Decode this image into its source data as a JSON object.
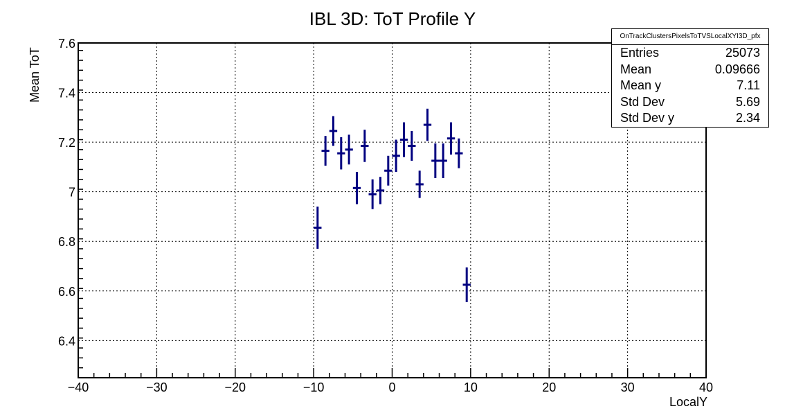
{
  "title": "IBL 3D: ToT Profile Y",
  "colors": {
    "marker": "#000080",
    "axis": "#000000",
    "grid": "#000000"
  },
  "stats": {
    "name": "OnTrackClustersPixelsToTVSLocalXYI3D_pfx",
    "rows": [
      {
        "label": "Entries",
        "value": "25073"
      },
      {
        "label": "Mean",
        "value": "0.09666"
      },
      {
        "label": "Mean y",
        "value": "7.11"
      },
      {
        "label": "Std Dev",
        "value": "5.69"
      },
      {
        "label": "Std Dev y",
        "value": "2.34"
      }
    ]
  },
  "chart_data": {
    "type": "scatter",
    "title": "IBL 3D: ToT Profile Y",
    "xlabel": "LocalY",
    "ylabel": "Mean ToT",
    "xlim": [
      -40,
      40
    ],
    "ylim": [
      6.25,
      7.6
    ],
    "grid": true,
    "x_ticks": [
      -40,
      -30,
      -20,
      -10,
      0,
      10,
      20,
      30,
      40
    ],
    "x_tick_labels": [
      "−40",
      "−30",
      "−20",
      "−10",
      "0",
      "10",
      "20",
      "30",
      "40"
    ],
    "y_ticks": [
      6.4,
      6.6,
      6.8,
      7.0,
      7.2,
      7.4,
      7.6
    ],
    "y_tick_labels": [
      "6.4",
      "6.6",
      "6.8",
      "7",
      "7.2",
      "7.4",
      "7.6"
    ],
    "bin_half_width": 0.5,
    "points": [
      {
        "x": -9.5,
        "y": 6.855,
        "err": 0.085
      },
      {
        "x": -8.5,
        "y": 7.165,
        "err": 0.06
      },
      {
        "x": -7.5,
        "y": 7.245,
        "err": 0.06
      },
      {
        "x": -6.5,
        "y": 7.155,
        "err": 0.065
      },
      {
        "x": -5.5,
        "y": 7.17,
        "err": 0.06
      },
      {
        "x": -4.5,
        "y": 7.015,
        "err": 0.065
      },
      {
        "x": -3.5,
        "y": 7.185,
        "err": 0.065
      },
      {
        "x": -2.5,
        "y": 6.99,
        "err": 0.06
      },
      {
        "x": -1.5,
        "y": 7.005,
        "err": 0.055
      },
      {
        "x": -0.5,
        "y": 7.085,
        "err": 0.06
      },
      {
        "x": 0.5,
        "y": 7.145,
        "err": 0.065
      },
      {
        "x": 1.5,
        "y": 7.21,
        "err": 0.07
      },
      {
        "x": 2.5,
        "y": 7.185,
        "err": 0.06
      },
      {
        "x": 3.5,
        "y": 7.03,
        "err": 0.055
      },
      {
        "x": 4.5,
        "y": 7.27,
        "err": 0.065
      },
      {
        "x": 5.5,
        "y": 7.125,
        "err": 0.07
      },
      {
        "x": 6.5,
        "y": 7.125,
        "err": 0.07
      },
      {
        "x": 7.5,
        "y": 7.215,
        "err": 0.065
      },
      {
        "x": 8.5,
        "y": 7.155,
        "err": 0.06
      },
      {
        "x": 9.5,
        "y": 6.625,
        "err": 0.07
      }
    ]
  }
}
